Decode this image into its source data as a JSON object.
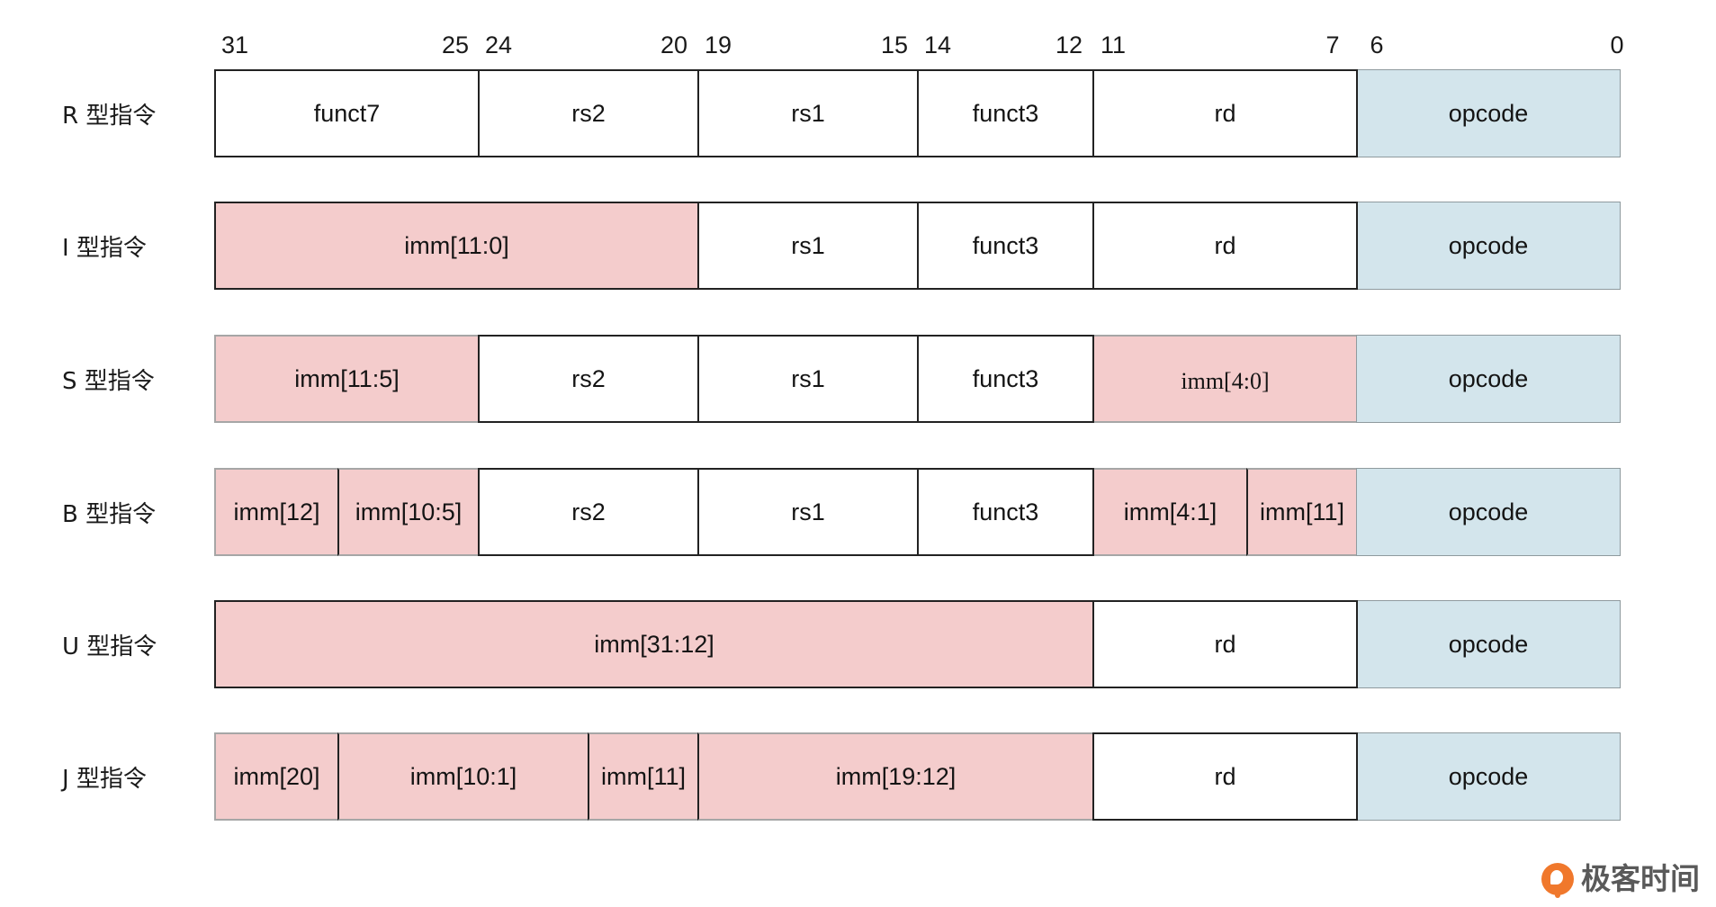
{
  "bit_labels": [
    "31",
    "25",
    "24",
    "20",
    "19",
    "15",
    "14",
    "12",
    "11",
    "7",
    "6",
    "0"
  ],
  "colors": {
    "imm": "#f4cccc",
    "opcode": "#d3e5ec",
    "plain": "#ffffff"
  },
  "rows": [
    {
      "label": "R 型指令",
      "fields": [
        {
          "text": "funct7",
          "kind": "plain"
        },
        {
          "text": "rs2",
          "kind": "plain"
        },
        {
          "text": "rs1",
          "kind": "plain"
        },
        {
          "text": "funct3",
          "kind": "plain"
        },
        {
          "text": "rd",
          "kind": "plain"
        },
        {
          "text": "opcode",
          "kind": "opcode"
        }
      ]
    },
    {
      "label": "I 型指令",
      "fields": [
        {
          "text": "imm[11:0]",
          "kind": "imm"
        },
        {
          "text": "rs1",
          "kind": "plain"
        },
        {
          "text": "funct3",
          "kind": "plain"
        },
        {
          "text": "rd",
          "kind": "plain"
        },
        {
          "text": "opcode",
          "kind": "opcode"
        }
      ]
    },
    {
      "label": "S 型指令",
      "fields": [
        {
          "text": "imm[11:5]",
          "kind": "imm"
        },
        {
          "text": "rs2",
          "kind": "plain"
        },
        {
          "text": "rs1",
          "kind": "plain"
        },
        {
          "text": "funct3",
          "kind": "plain"
        },
        {
          "text": "imm[4:0]",
          "kind": "imm"
        },
        {
          "text": "opcode",
          "kind": "opcode"
        }
      ]
    },
    {
      "label": "B 型指令",
      "fields": [
        {
          "text": "imm[12]",
          "kind": "imm"
        },
        {
          "text": "imm[10:5]",
          "kind": "imm"
        },
        {
          "text": "rs2",
          "kind": "plain"
        },
        {
          "text": "rs1",
          "kind": "plain"
        },
        {
          "text": "funct3",
          "kind": "plain"
        },
        {
          "text": "imm[4:1]",
          "kind": "imm"
        },
        {
          "text": "imm[11]",
          "kind": "imm"
        },
        {
          "text": "opcode",
          "kind": "opcode"
        }
      ]
    },
    {
      "label": "U 型指令",
      "fields": [
        {
          "text": "imm[31:12]",
          "kind": "imm"
        },
        {
          "text": "rd",
          "kind": "plain"
        },
        {
          "text": "opcode",
          "kind": "opcode"
        }
      ]
    },
    {
      "label": "J 型指令",
      "fields": [
        {
          "text": "imm[20]",
          "kind": "imm"
        },
        {
          "text": "imm[10:1]",
          "kind": "imm"
        },
        {
          "text": "imm[11]",
          "kind": "imm"
        },
        {
          "text": "imm[19:12]",
          "kind": "imm"
        },
        {
          "text": "rd",
          "kind": "plain"
        },
        {
          "text": "opcode",
          "kind": "opcode"
        }
      ]
    }
  ],
  "watermark": {
    "text": "极客时间",
    "icon": "geektime-logo-icon"
  }
}
